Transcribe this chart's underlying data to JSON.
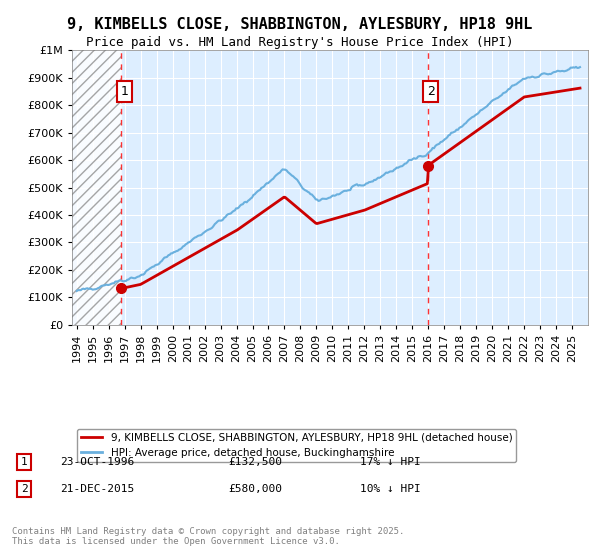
{
  "title": "9, KIMBELLS CLOSE, SHABBINGTON, AYLESBURY, HP18 9HL",
  "subtitle": "Price paid vs. HM Land Registry's House Price Index (HPI)",
  "legend_line1": "9, KIMBELLS CLOSE, SHABBINGTON, AYLESBURY, HP18 9HL (detached house)",
  "legend_line2": "HPI: Average price, detached house, Buckinghamshire",
  "annotation1_label": "1",
  "annotation1_date": "23-OCT-1996",
  "annotation1_price": "£132,500",
  "annotation1_note": "17% ↓ HPI",
  "annotation2_label": "2",
  "annotation2_date": "21-DEC-2015",
  "annotation2_price": "£580,000",
  "annotation2_note": "10% ↓ HPI",
  "footer": "Contains HM Land Registry data © Crown copyright and database right 2025.\nThis data is licensed under the Open Government Licence v3.0.",
  "hpi_color": "#6ab0de",
  "price_color": "#cc0000",
  "background_color": "#ddeeff",
  "plot_bg_color": "#ddeeff",
  "ylim": [
    0,
    1000000
  ],
  "xlabel": "",
  "ylabel": ""
}
